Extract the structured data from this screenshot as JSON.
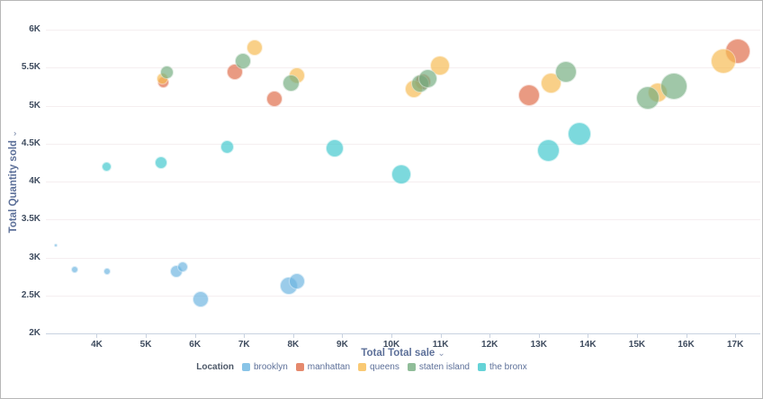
{
  "chart": {
    "ylabel": "Total Quantity sold",
    "xlabel": "Total Total sale",
    "legend_title": "Location"
  },
  "icons": {
    "chevron_down": "⌄"
  },
  "chart_data": {
    "type": "scatter",
    "subtype": "bubble",
    "title": "",
    "xlabel": "Total Total sale",
    "ylabel": "Total Quantity sold",
    "value_unit": "K",
    "xlim": [
      2.965,
      17.51
    ],
    "ylim": [
      2,
      6
    ],
    "x_ticks": [
      4,
      5,
      6,
      7,
      8,
      9,
      10,
      11,
      12,
      13,
      14,
      15,
      16,
      17
    ],
    "y_ticks": [
      2,
      2.5,
      3,
      3.5,
      4,
      4.5,
      5,
      5.5,
      6
    ],
    "grid": "horizontal",
    "legend_position": "bottom",
    "series": [
      {
        "name": "brooklyn",
        "color": "#6cb5e1",
        "points": [
          {
            "x": 3.17,
            "y": 3.16,
            "r": 2
          },
          {
            "x": 3.55,
            "y": 2.84,
            "r": 4
          },
          {
            "x": 4.21,
            "y": 2.82,
            "r": 4
          },
          {
            "x": 5.62,
            "y": 2.82,
            "r": 7
          },
          {
            "x": 5.75,
            "y": 2.87,
            "r": 6
          },
          {
            "x": 6.12,
            "y": 2.45,
            "r": 9
          },
          {
            "x": 7.91,
            "y": 2.63,
            "r": 10
          },
          {
            "x": 8.08,
            "y": 2.69,
            "r": 9
          }
        ]
      },
      {
        "name": "manhattan",
        "color": "#df6b48",
        "points": [
          {
            "x": 5.35,
            "y": 5.31,
            "r": 6.5
          },
          {
            "x": 6.81,
            "y": 5.44,
            "r": 9
          },
          {
            "x": 7.62,
            "y": 5.09,
            "r": 9
          },
          {
            "x": 10.64,
            "y": 5.31,
            "r": 9
          },
          {
            "x": 12.8,
            "y": 5.14,
            "r": 12
          },
          {
            "x": 17.05,
            "y": 5.72,
            "r": 14
          }
        ]
      },
      {
        "name": "queens",
        "color": "#f7bb51",
        "points": [
          {
            "x": 5.33,
            "y": 5.35,
            "r": 6.5
          },
          {
            "x": 7.21,
            "y": 5.76,
            "r": 9
          },
          {
            "x": 8.08,
            "y": 5.4,
            "r": 9
          },
          {
            "x": 10.46,
            "y": 5.22,
            "r": 10
          },
          {
            "x": 10.99,
            "y": 5.53,
            "r": 11
          },
          {
            "x": 13.26,
            "y": 5.29,
            "r": 11.5
          },
          {
            "x": 15.42,
            "y": 5.17,
            "r": 11
          },
          {
            "x": 16.76,
            "y": 5.59,
            "r": 14
          }
        ]
      },
      {
        "name": "staten island",
        "color": "#74ad80",
        "points": [
          {
            "x": 5.42,
            "y": 5.44,
            "r": 7.5
          },
          {
            "x": 6.98,
            "y": 5.59,
            "r": 9
          },
          {
            "x": 7.95,
            "y": 5.3,
            "r": 9.5
          },
          {
            "x": 10.58,
            "y": 5.29,
            "r": 10
          },
          {
            "x": 10.75,
            "y": 5.36,
            "r": 10.5
          },
          {
            "x": 13.55,
            "y": 5.44,
            "r": 12
          },
          {
            "x": 15.22,
            "y": 5.1,
            "r": 13
          },
          {
            "x": 15.75,
            "y": 5.25,
            "r": 15
          }
        ]
      },
      {
        "name": "the bronx",
        "color": "#3fc8cd",
        "points": [
          {
            "x": 4.21,
            "y": 4.19,
            "r": 5.5
          },
          {
            "x": 5.31,
            "y": 4.25,
            "r": 7
          },
          {
            "x": 6.66,
            "y": 4.45,
            "r": 7.5
          },
          {
            "x": 8.84,
            "y": 4.44,
            "r": 10
          },
          {
            "x": 10.2,
            "y": 4.09,
            "r": 11
          },
          {
            "x": 13.2,
            "y": 4.41,
            "r": 12.5
          },
          {
            "x": 13.82,
            "y": 4.63,
            "r": 13
          }
        ]
      }
    ]
  }
}
